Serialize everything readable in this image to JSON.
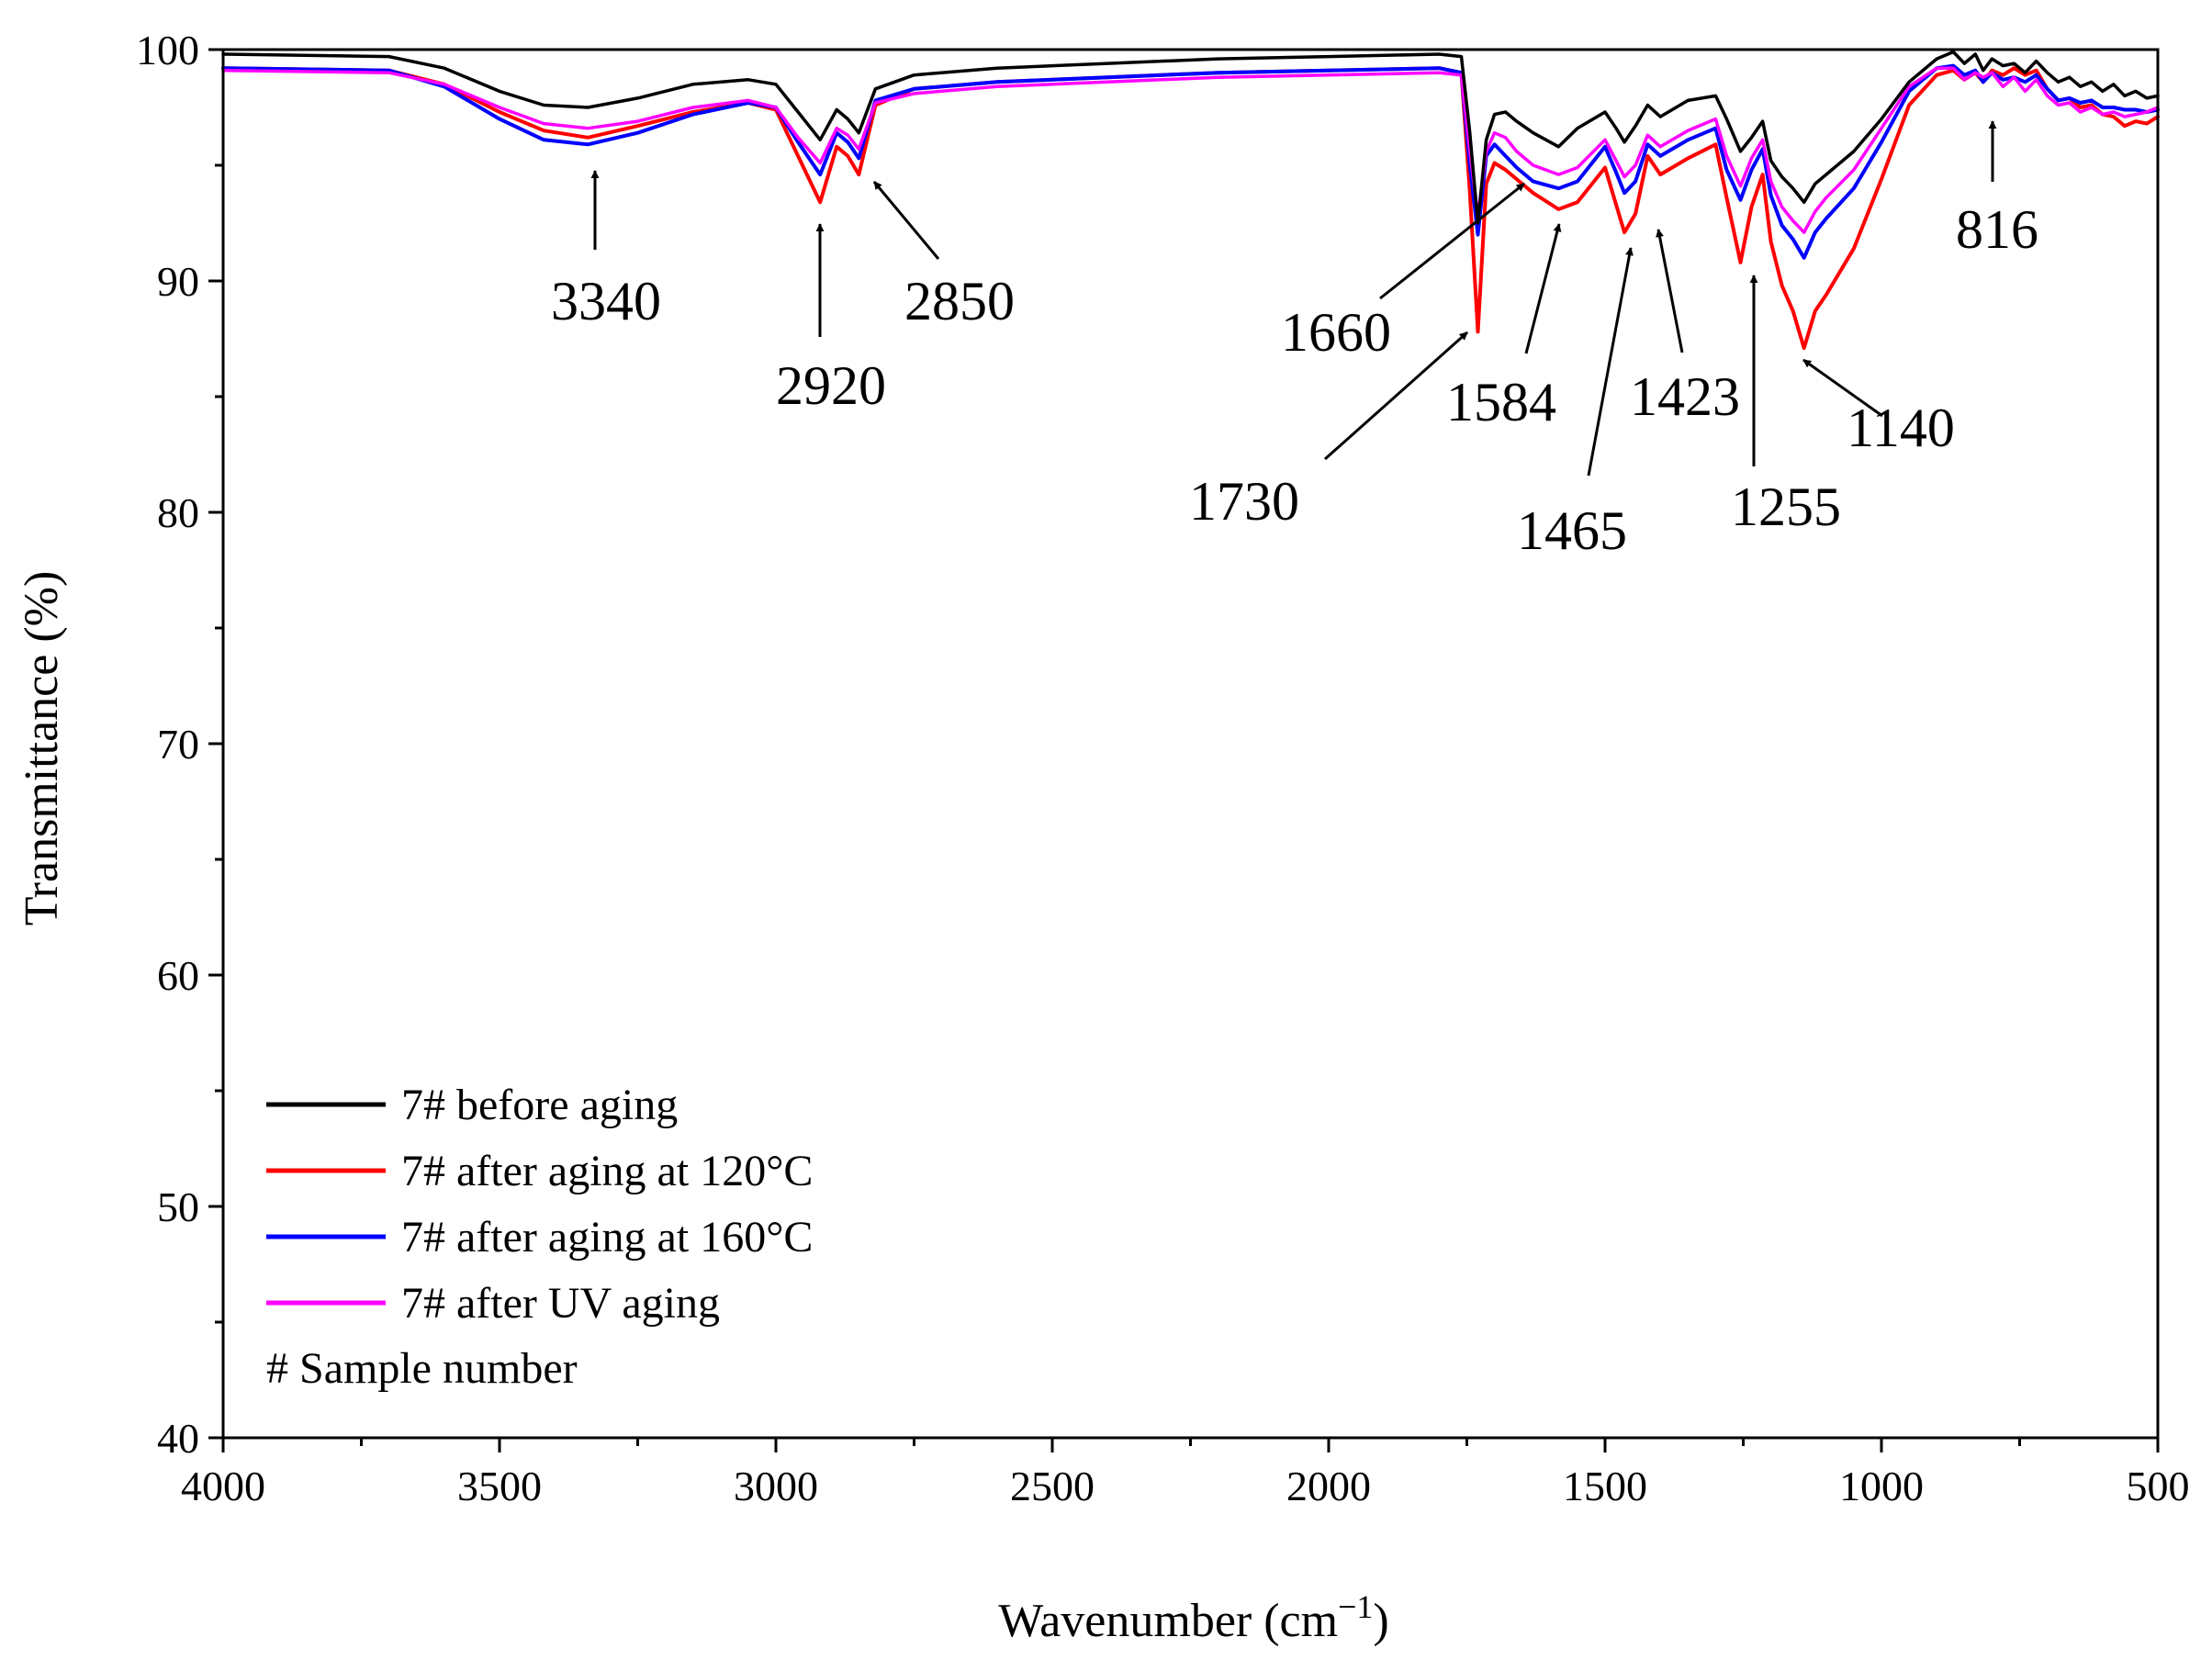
{
  "chart_data": {
    "type": "line",
    "title": "",
    "xlabel": "Wavenumber (cm",
    "xlabel_sup": "−1",
    "xlabel_close": ")",
    "ylabel": "Transmittance (%)",
    "xlim": [
      4000,
      500
    ],
    "ylim": [
      40,
      100
    ],
    "x_ticks": [
      4000,
      3500,
      3000,
      2500,
      2000,
      1500,
      1000,
      500
    ],
    "y_ticks": [
      40,
      50,
      60,
      70,
      80,
      90,
      100
    ],
    "grid": false,
    "legend_position": "bottom-left",
    "legend_note": "# Sample number",
    "series": [
      {
        "name": "7# before aging",
        "color": "#000000",
        "x": [
          4000,
          3700,
          3600,
          3500,
          3420,
          3340,
          3250,
          3150,
          3050,
          3000,
          2960,
          2920,
          2890,
          2870,
          2850,
          2820,
          2750,
          2600,
          2400,
          2200,
          2000,
          1800,
          1760,
          1745,
          1730,
          1715,
          1700,
          1680,
          1660,
          1630,
          1584,
          1550,
          1500,
          1480,
          1465,
          1445,
          1423,
          1400,
          1350,
          1300,
          1280,
          1255,
          1235,
          1215,
          1200,
          1180,
          1160,
          1140,
          1120,
          1100,
          1050,
          1000,
          950,
          900,
          870,
          850,
          830,
          816,
          800,
          780,
          760,
          740,
          720,
          700,
          680,
          660,
          640,
          620,
          600,
          580,
          560,
          540,
          520,
          500
        ],
        "y": [
          99.8,
          99.7,
          99.2,
          98.2,
          97.6,
          97.5,
          97.9,
          98.5,
          98.7,
          98.5,
          97.3,
          96.1,
          97.4,
          97.0,
          96.4,
          98.3,
          98.9,
          99.2,
          99.4,
          99.6,
          99.7,
          99.8,
          99.7,
          96.5,
          92.5,
          96.1,
          97.2,
          97.3,
          96.9,
          96.4,
          95.8,
          96.6,
          97.3,
          96.6,
          96.0,
          96.7,
          97.6,
          97.1,
          97.8,
          98.0,
          97.0,
          95.6,
          96.2,
          96.9,
          95.2,
          94.5,
          94.0,
          93.4,
          94.2,
          94.6,
          95.6,
          97.0,
          98.6,
          99.6,
          99.9,
          99.4,
          99.8,
          99.1,
          99.6,
          99.3,
          99.4,
          99.0,
          99.5,
          99.0,
          98.6,
          98.8,
          98.4,
          98.6,
          98.2,
          98.5,
          98.0,
          98.2,
          97.9,
          98.0
        ]
      },
      {
        "name": "7# after aging at 120°C",
        "color": "#ff0000",
        "x": [
          4000,
          3700,
          3600,
          3500,
          3420,
          3340,
          3250,
          3150,
          3050,
          3000,
          2960,
          2920,
          2890,
          2870,
          2850,
          2820,
          2750,
          2600,
          2400,
          2200,
          2000,
          1800,
          1760,
          1745,
          1730,
          1715,
          1700,
          1680,
          1660,
          1630,
          1584,
          1550,
          1500,
          1480,
          1465,
          1445,
          1423,
          1400,
          1350,
          1300,
          1280,
          1255,
          1235,
          1215,
          1200,
          1180,
          1160,
          1140,
          1120,
          1100,
          1050,
          1000,
          950,
          900,
          870,
          850,
          830,
          816,
          800,
          780,
          760,
          740,
          720,
          700,
          680,
          660,
          640,
          620,
          600,
          580,
          560,
          540,
          520,
          500
        ],
        "y": [
          99.2,
          99.1,
          98.5,
          97.3,
          96.5,
          96.2,
          96.7,
          97.3,
          97.7,
          97.4,
          95.4,
          93.4,
          95.8,
          95.4,
          94.6,
          97.6,
          98.3,
          98.6,
          98.8,
          99.0,
          99.1,
          99.2,
          99.0,
          94.0,
          87.8,
          94.2,
          95.1,
          94.8,
          94.4,
          93.8,
          93.1,
          93.4,
          94.9,
          93.3,
          92.1,
          92.9,
          95.4,
          94.6,
          95.3,
          95.9,
          93.6,
          90.8,
          93.2,
          94.6,
          91.7,
          89.8,
          88.7,
          87.1,
          88.7,
          89.4,
          91.4,
          94.4,
          97.6,
          98.9,
          99.1,
          98.7,
          99.0,
          98.6,
          99.1,
          98.9,
          99.2,
          98.9,
          99.1,
          98.3,
          97.8,
          97.9,
          97.5,
          97.6,
          97.2,
          97.1,
          96.7,
          96.9,
          96.8,
          97.1
        ]
      },
      {
        "name": "7# after aging at 160°C",
        "color": "#0000ff",
        "x": [
          4000,
          3700,
          3600,
          3500,
          3420,
          3340,
          3250,
          3150,
          3050,
          3000,
          2960,
          2920,
          2890,
          2870,
          2850,
          2820,
          2750,
          2600,
          2400,
          2200,
          2000,
          1800,
          1760,
          1745,
          1730,
          1715,
          1700,
          1680,
          1660,
          1630,
          1584,
          1550,
          1500,
          1480,
          1465,
          1445,
          1423,
          1400,
          1350,
          1300,
          1280,
          1255,
          1235,
          1215,
          1200,
          1180,
          1160,
          1140,
          1120,
          1100,
          1050,
          1000,
          950,
          900,
          870,
          850,
          830,
          816,
          800,
          780,
          760,
          740,
          720,
          700,
          680,
          660,
          640,
          620,
          600,
          580,
          560,
          540,
          520,
          500
        ],
        "y": [
          99.2,
          99.1,
          98.4,
          97.0,
          96.1,
          95.9,
          96.4,
          97.2,
          97.7,
          97.5,
          96.0,
          94.6,
          96.4,
          96.0,
          95.3,
          97.8,
          98.3,
          98.6,
          98.8,
          99.0,
          99.1,
          99.2,
          99.0,
          95.1,
          92.0,
          95.4,
          95.9,
          95.4,
          94.9,
          94.3,
          94.0,
          94.3,
          95.8,
          94.7,
          93.8,
          94.3,
          95.9,
          95.4,
          96.1,
          96.6,
          94.8,
          93.5,
          94.8,
          95.7,
          93.7,
          92.4,
          91.8,
          91.0,
          92.1,
          92.7,
          94.0,
          96.0,
          98.2,
          99.2,
          99.3,
          98.9,
          99.1,
          98.6,
          99.0,
          98.7,
          98.8,
          98.6,
          98.9,
          98.3,
          97.8,
          97.9,
          97.7,
          97.8,
          97.5,
          97.5,
          97.4,
          97.4,
          97.3,
          97.4
        ]
      },
      {
        "name": "7# after UV aging",
        "color": "#ff00ff",
        "x": [
          4000,
          3700,
          3600,
          3500,
          3420,
          3340,
          3250,
          3150,
          3050,
          3000,
          2960,
          2920,
          2890,
          2870,
          2850,
          2820,
          2750,
          2600,
          2400,
          2200,
          2000,
          1800,
          1760,
          1745,
          1730,
          1715,
          1700,
          1680,
          1660,
          1630,
          1584,
          1550,
          1500,
          1480,
          1465,
          1445,
          1423,
          1400,
          1350,
          1300,
          1280,
          1255,
          1235,
          1215,
          1200,
          1180,
          1160,
          1140,
          1120,
          1100,
          1050,
          1000,
          950,
          900,
          870,
          850,
          830,
          816,
          800,
          780,
          760,
          740,
          720,
          700,
          680,
          660,
          640,
          620,
          600,
          580,
          560,
          540,
          520,
          500
        ],
        "y": [
          99.1,
          99.0,
          98.5,
          97.5,
          96.8,
          96.6,
          96.9,
          97.5,
          97.8,
          97.5,
          96.2,
          95.1,
          96.6,
          96.3,
          95.7,
          97.7,
          98.1,
          98.4,
          98.6,
          98.8,
          98.9,
          99.0,
          98.9,
          95.7,
          92.8,
          95.6,
          96.4,
          96.2,
          95.6,
          95.0,
          94.6,
          94.9,
          96.1,
          95.2,
          94.5,
          95.0,
          96.3,
          95.8,
          96.5,
          97.0,
          95.4,
          94.1,
          95.3,
          96.1,
          94.3,
          93.2,
          92.6,
          92.1,
          93.0,
          93.6,
          94.8,
          96.6,
          98.4,
          99.2,
          99.2,
          98.7,
          99.0,
          98.8,
          99.0,
          98.4,
          98.8,
          98.2,
          98.7,
          98.0,
          97.6,
          97.7,
          97.3,
          97.5,
          97.2,
          97.3,
          97.1,
          97.2,
          97.3,
          97.5
        ]
      }
    ],
    "annotations": [
      {
        "label": "3340",
        "x": 3340
      },
      {
        "label": "2920",
        "x": 2920
      },
      {
        "label": "2850",
        "x": 2850
      },
      {
        "label": "1660",
        "x": 1660
      },
      {
        "label": "1730",
        "x": 1730
      },
      {
        "label": "1584",
        "x": 1584
      },
      {
        "label": "1465",
        "x": 1465
      },
      {
        "label": "1423",
        "x": 1423
      },
      {
        "label": "1255",
        "x": 1255
      },
      {
        "label": "1140",
        "x": 1140
      },
      {
        "label": "816",
        "x": 816
      }
    ]
  }
}
